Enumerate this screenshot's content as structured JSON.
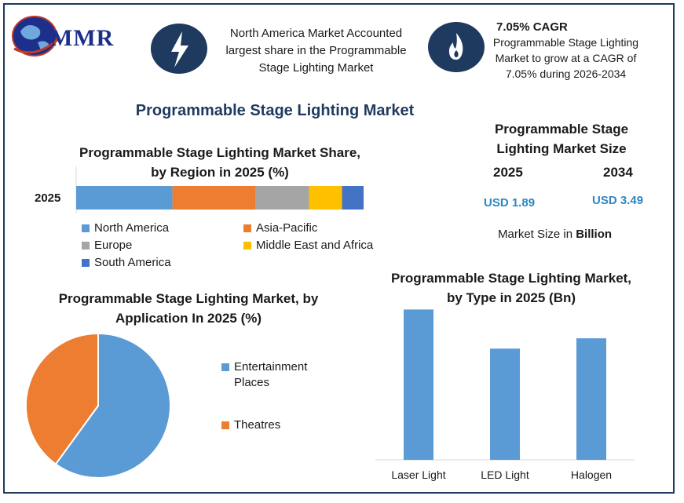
{
  "logo": {
    "text": "MMR"
  },
  "banner": {
    "left_text": "North America Market Accounted largest share in the Programmable Stage Lighting Market",
    "cagr_title": "7.05% CAGR",
    "cagr_text": "Programmable Stage Lighting Market to grow at a CAGR of 7.05% during 2026-2034",
    "left_icon": "lightning-bolt-icon",
    "right_icon": "flame-icon",
    "icon_color": "#1f3a5f"
  },
  "main_title": "Programmable Stage Lighting Market",
  "market_size": {
    "title": "Programmable Stage Lighting Market Size",
    "years": [
      {
        "year": "2025",
        "value": "USD 1.89"
      },
      {
        "year": "2034",
        "value": "USD 3.49"
      }
    ],
    "unit_prefix": "Market Size in ",
    "unit_bold": "Billion"
  },
  "chart_data": [
    {
      "type": "bar",
      "orientation": "horizontal-stacked",
      "title": "Programmable Stage Lighting Market Share, by Region in 2025 (%)",
      "categories": [
        "2025"
      ],
      "series": [
        {
          "name": "North America",
          "values": [
            33.5
          ],
          "color": "#5b9bd5"
        },
        {
          "name": "Asia-Pacific",
          "values": [
            29.0
          ],
          "color": "#ed7d31"
        },
        {
          "name": "Europe",
          "values": [
            18.5
          ],
          "color": "#a5a5a5"
        },
        {
          "name": "Middle East and Africa",
          "values": [
            11.5
          ],
          "color": "#ffc000"
        },
        {
          "name": "South America",
          "values": [
            7.5
          ],
          "color": "#4472c4"
        }
      ],
      "xlim": [
        0,
        100
      ],
      "legend": "bottom"
    },
    {
      "type": "pie",
      "title": "Programmable Stage Lighting Market, by Application In 2025 (%)",
      "slices": [
        {
          "name": "Entertainment Places",
          "value": 60,
          "color": "#5b9bd5"
        },
        {
          "name": "Theatres",
          "value": 40,
          "color": "#ed7d31"
        }
      ],
      "legend": "right"
    },
    {
      "type": "bar",
      "title": "Programmable Stage Lighting Market, by Type in 2025 (Bn)",
      "categories": [
        "Laser Light",
        "LED Light",
        "Halogen"
      ],
      "values": [
        0.73,
        0.54,
        0.59
      ],
      "ylim": [
        0,
        0.8
      ],
      "color": "#5b9bd5",
      "grid": false
    }
  ]
}
